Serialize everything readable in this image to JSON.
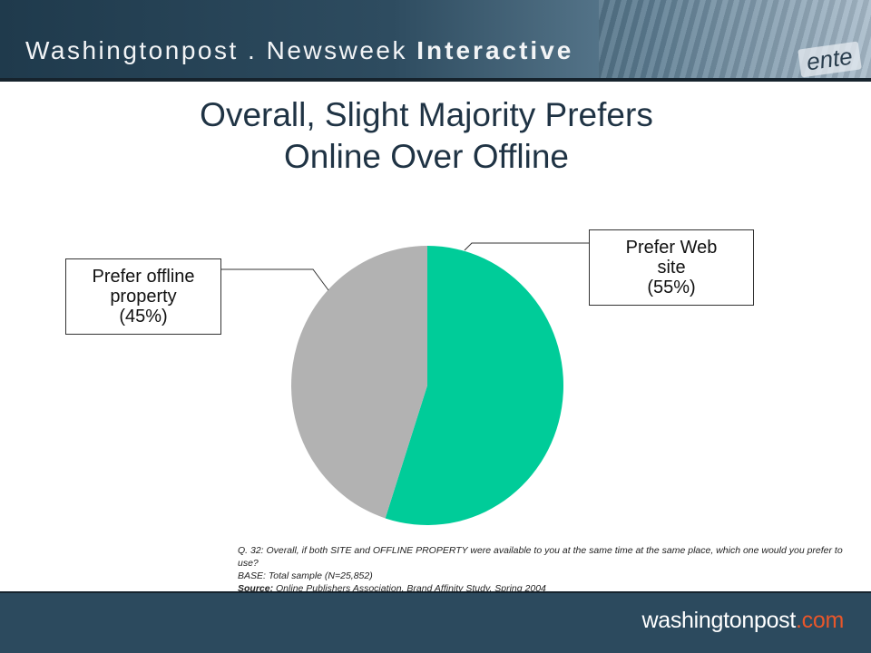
{
  "header": {
    "brand_left": "Washingtonpost",
    "brand_dot": ".",
    "brand_mid": "Newsweek",
    "brand_right": "Interactive",
    "image_text": "ente"
  },
  "title": {
    "line1": "Overall, Slight Majority Prefers",
    "line2": "Online Over Offline"
  },
  "chart_data": {
    "type": "pie",
    "title": "Overall, Slight Majority Prefers Online Over Offline",
    "categories": [
      "Prefer Web site",
      "Prefer offline property"
    ],
    "values": [
      55,
      45
    ],
    "unit": "%",
    "colors": [
      "#00cc99",
      "#b2b2b2"
    ],
    "labels": [
      {
        "line1": "Prefer Web",
        "line2": "site",
        "line3": "(55%)"
      },
      {
        "line1": "Prefer offline",
        "line2": "property",
        "line3": "(45%)"
      }
    ]
  },
  "footnote": {
    "question": "Q. 32: Overall, if both SITE and OFFLINE PROPERTY were available to you at the same time at the same place, which one would you prefer to use?",
    "base": "BASE: Total sample (N=25,852)",
    "source_label": "Source:",
    "source_text": "Online Publishers Association, Brand Affinity Study, Spring 2004"
  },
  "footer": {
    "brand_main": "washingtonpost",
    "brand_accent": ".com"
  }
}
